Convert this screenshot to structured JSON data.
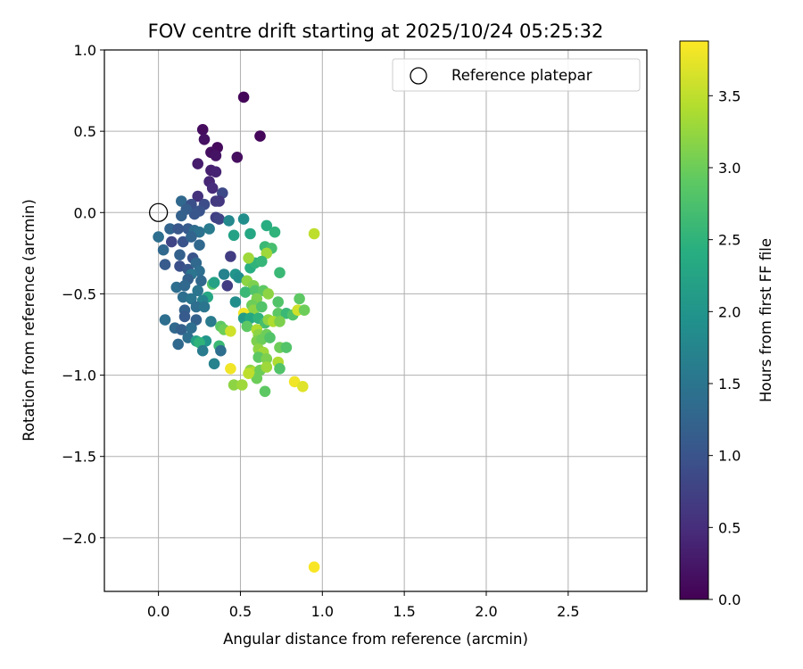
{
  "chart_data": {
    "type": "scatter",
    "title": "FOV centre drift starting at 2025/10/24 05:25:32",
    "xlabel": "Angular distance from reference (arcmin)",
    "ylabel": "Rotation from reference (arcmin)",
    "xlim": [
      -0.33,
      2.98
    ],
    "ylim": [
      -2.33,
      1.0
    ],
    "xticks": [
      0.0,
      0.5,
      1.0,
      1.5,
      2.0,
      2.5
    ],
    "xtick_labels": [
      "0.0",
      "0.5",
      "1.0",
      "1.5",
      "2.0",
      "2.5"
    ],
    "yticks": [
      1.0,
      0.5,
      0.0,
      -0.5,
      -1.0,
      -1.5,
      -2.0
    ],
    "ytick_labels": [
      "1.0",
      "0.5",
      "0.0",
      "−0.5",
      "−1.0",
      "−1.5",
      "−2.0"
    ],
    "grid": true,
    "legend": {
      "placement": "top-right",
      "entries": [
        "Reference platepar"
      ]
    },
    "reference_point": {
      "x": 0.0,
      "y": 0.0,
      "label": "Reference platepar"
    },
    "colorbar": {
      "label": "Hours from first FF file",
      "colormap": "viridis",
      "range": [
        0.0,
        3.88
      ],
      "ticks": [
        0.0,
        0.5,
        1.0,
        1.5,
        2.0,
        2.5,
        3.0,
        3.5
      ],
      "tick_labels": [
        "0.0",
        "0.5",
        "1.0",
        "1.5",
        "2.0",
        "2.5",
        "3.0",
        "3.5"
      ]
    },
    "points": [
      [
        0.52,
        0.71,
        0.05
      ],
      [
        0.62,
        0.47,
        0.07
      ],
      [
        0.27,
        0.51,
        0.12
      ],
      [
        0.28,
        0.45,
        0.18
      ],
      [
        0.36,
        0.4,
        0.1
      ],
      [
        0.32,
        0.37,
        0.15
      ],
      [
        0.35,
        0.35,
        0.2
      ],
      [
        0.48,
        0.34,
        0.14
      ],
      [
        0.24,
        0.3,
        0.3
      ],
      [
        0.32,
        0.26,
        0.34
      ],
      [
        0.35,
        0.25,
        0.38
      ],
      [
        0.31,
        0.19,
        0.42
      ],
      [
        0.33,
        0.15,
        0.48
      ],
      [
        0.24,
        0.1,
        0.55
      ],
      [
        0.39,
        0.12,
        0.85
      ],
      [
        0.37,
        0.07,
        0.6
      ],
      [
        0.35,
        0.07,
        0.65
      ],
      [
        0.14,
        0.07,
        1.3
      ],
      [
        0.2,
        0.05,
        0.95
      ],
      [
        0.28,
        0.05,
        0.9
      ],
      [
        0.25,
        0.01,
        1.0
      ],
      [
        0.22,
        -0.01,
        1.05
      ],
      [
        0.17,
        0.02,
        1.15
      ],
      [
        0.14,
        -0.02,
        1.2
      ],
      [
        0.35,
        -0.03,
        0.72
      ],
      [
        0.37,
        -0.04,
        0.78
      ],
      [
        0.43,
        -0.05,
        1.8
      ],
      [
        0.52,
        -0.04,
        1.9
      ],
      [
        0.18,
        -0.1,
        1.1
      ],
      [
        0.07,
        -0.1,
        1.25
      ],
      [
        0.12,
        -0.1,
        1.05
      ],
      [
        0.22,
        -0.11,
        1.35
      ],
      [
        0.25,
        -0.12,
        1.45
      ],
      [
        0.31,
        -0.1,
        1.6
      ],
      [
        0.0,
        -0.15,
        1.4
      ],
      [
        0.08,
        -0.18,
        0.8
      ],
      [
        0.15,
        -0.18,
        1.0
      ],
      [
        0.2,
        -0.15,
        1.25
      ],
      [
        0.46,
        -0.14,
        2.2
      ],
      [
        0.56,
        -0.13,
        2.3
      ],
      [
        0.66,
        -0.08,
        2.4
      ],
      [
        0.71,
        -0.12,
        2.5
      ],
      [
        0.95,
        -0.13,
        3.5
      ],
      [
        0.25,
        -0.2,
        1.3
      ],
      [
        0.03,
        -0.23,
        1.3
      ],
      [
        0.13,
        -0.26,
        1.2
      ],
      [
        0.21,
        -0.28,
        1.0
      ],
      [
        0.44,
        -0.27,
        0.7
      ],
      [
        0.65,
        -0.21,
        2.6
      ],
      [
        0.69,
        -0.22,
        2.7
      ],
      [
        0.66,
        -0.25,
        3.3
      ],
      [
        0.04,
        -0.32,
        1.1
      ],
      [
        0.13,
        -0.33,
        0.95
      ],
      [
        0.18,
        -0.35,
        1.05
      ],
      [
        0.23,
        -0.31,
        1.3
      ],
      [
        0.25,
        -0.36,
        1.4
      ],
      [
        0.2,
        -0.38,
        1.5
      ],
      [
        0.4,
        -0.38,
        1.7
      ],
      [
        0.47,
        -0.38,
        2.0
      ],
      [
        0.56,
        -0.34,
        2.4
      ],
      [
        0.59,
        -0.31,
        2.5
      ],
      [
        0.63,
        -0.3,
        2.55
      ],
      [
        0.55,
        -0.28,
        3.3
      ],
      [
        0.74,
        -0.37,
        2.6
      ],
      [
        0.18,
        -0.41,
        1.2
      ],
      [
        0.26,
        -0.42,
        1.3
      ],
      [
        0.42,
        -0.45,
        0.7
      ],
      [
        0.49,
        -0.4,
        1.9
      ],
      [
        0.54,
        -0.42,
        3.2
      ],
      [
        0.58,
        -0.45,
        3.1
      ],
      [
        0.11,
        -0.46,
        1.4
      ],
      [
        0.16,
        -0.45,
        1.3
      ],
      [
        0.24,
        -0.48,
        1.5
      ],
      [
        0.33,
        -0.44,
        2.8
      ],
      [
        0.34,
        -0.43,
        2.2
      ],
      [
        0.53,
        -0.49,
        2.6
      ],
      [
        0.59,
        -0.48,
        2.8
      ],
      [
        0.64,
        -0.48,
        2.9
      ],
      [
        0.67,
        -0.5,
        3.2
      ],
      [
        0.15,
        -0.52,
        1.4
      ],
      [
        0.2,
        -0.53,
        1.5
      ],
      [
        0.3,
        -0.52,
        2.3
      ],
      [
        0.27,
        -0.54,
        1.7
      ],
      [
        0.47,
        -0.55,
        1.9
      ],
      [
        0.73,
        -0.55,
        2.8
      ],
      [
        0.86,
        -0.53,
        2.9
      ],
      [
        0.6,
        -0.53,
        3.1
      ],
      [
        0.16,
        -0.6,
        1.2
      ],
      [
        0.23,
        -0.58,
        1.4
      ],
      [
        0.28,
        -0.58,
        1.5
      ],
      [
        0.57,
        -0.57,
        3.0
      ],
      [
        0.58,
        -0.6,
        3.2
      ],
      [
        0.63,
        -0.58,
        2.8
      ],
      [
        0.73,
        -0.62,
        2.9
      ],
      [
        0.78,
        -0.62,
        2.6
      ],
      [
        0.82,
        -0.63,
        2.8
      ],
      [
        0.85,
        -0.6,
        3.6
      ],
      [
        0.89,
        -0.6,
        3.0
      ],
      [
        0.16,
        -0.64,
        1.1
      ],
      [
        0.52,
        -0.62,
        3.8
      ],
      [
        0.04,
        -0.66,
        1.4
      ],
      [
        0.23,
        -0.66,
        1.2
      ],
      [
        0.32,
        -0.67,
        1.6
      ],
      [
        0.52,
        -0.65,
        2.1
      ],
      [
        0.56,
        -0.65,
        2.3
      ],
      [
        0.61,
        -0.65,
        2.5
      ],
      [
        0.65,
        -0.68,
        2.7
      ],
      [
        0.67,
        -0.66,
        3.2
      ],
      [
        0.7,
        -0.67,
        3.4
      ],
      [
        0.74,
        -0.67,
        3.1
      ],
      [
        0.1,
        -0.71,
        1.3
      ],
      [
        0.14,
        -0.72,
        1.2
      ],
      [
        0.2,
        -0.71,
        1.4
      ],
      [
        0.38,
        -0.7,
        2.9
      ],
      [
        0.4,
        -0.72,
        3.0
      ],
      [
        0.44,
        -0.73,
        3.6
      ],
      [
        0.54,
        -0.7,
        2.9
      ],
      [
        0.6,
        -0.72,
        3.4
      ],
      [
        0.61,
        -0.75,
        3.2
      ],
      [
        0.66,
        -0.75,
        3.0
      ],
      [
        0.18,
        -0.77,
        1.4
      ],
      [
        0.23,
        -0.79,
        2.2
      ],
      [
        0.29,
        -0.79,
        2.0
      ],
      [
        0.6,
        -0.79,
        3.1
      ],
      [
        0.63,
        -0.78,
        3.0
      ],
      [
        0.68,
        -0.77,
        2.8
      ],
      [
        0.12,
        -0.81,
        1.3
      ],
      [
        0.25,
        -0.8,
        2.5
      ],
      [
        0.37,
        -0.82,
        2.6
      ],
      [
        0.38,
        -0.85,
        1.4
      ],
      [
        0.27,
        -0.85,
        1.6
      ],
      [
        0.61,
        -0.84,
        3.2
      ],
      [
        0.64,
        -0.86,
        3.3
      ],
      [
        0.74,
        -0.83,
        3.0
      ],
      [
        0.78,
        -0.83,
        2.8
      ],
      [
        0.61,
        -0.89,
        2.9
      ],
      [
        0.66,
        -0.9,
        3.1
      ],
      [
        0.34,
        -0.93,
        1.7
      ],
      [
        0.44,
        -0.96,
        3.8
      ],
      [
        0.56,
        -0.97,
        3.2
      ],
      [
        0.58,
        -0.98,
        3.4
      ],
      [
        0.62,
        -0.97,
        3.0
      ],
      [
        0.66,
        -0.95,
        3.3
      ],
      [
        0.73,
        -0.92,
        3.4
      ],
      [
        0.74,
        -0.96,
        2.8
      ],
      [
        0.6,
        -1.02,
        3.0
      ],
      [
        0.55,
        -0.99,
        3.5
      ],
      [
        0.46,
        -1.06,
        3.2
      ],
      [
        0.51,
        -1.06,
        3.3
      ],
      [
        0.65,
        -1.1,
        2.9
      ],
      [
        0.83,
        -1.04,
        3.8
      ],
      [
        0.88,
        -1.07,
        3.7
      ],
      [
        0.95,
        -2.18,
        3.85
      ]
    ]
  }
}
